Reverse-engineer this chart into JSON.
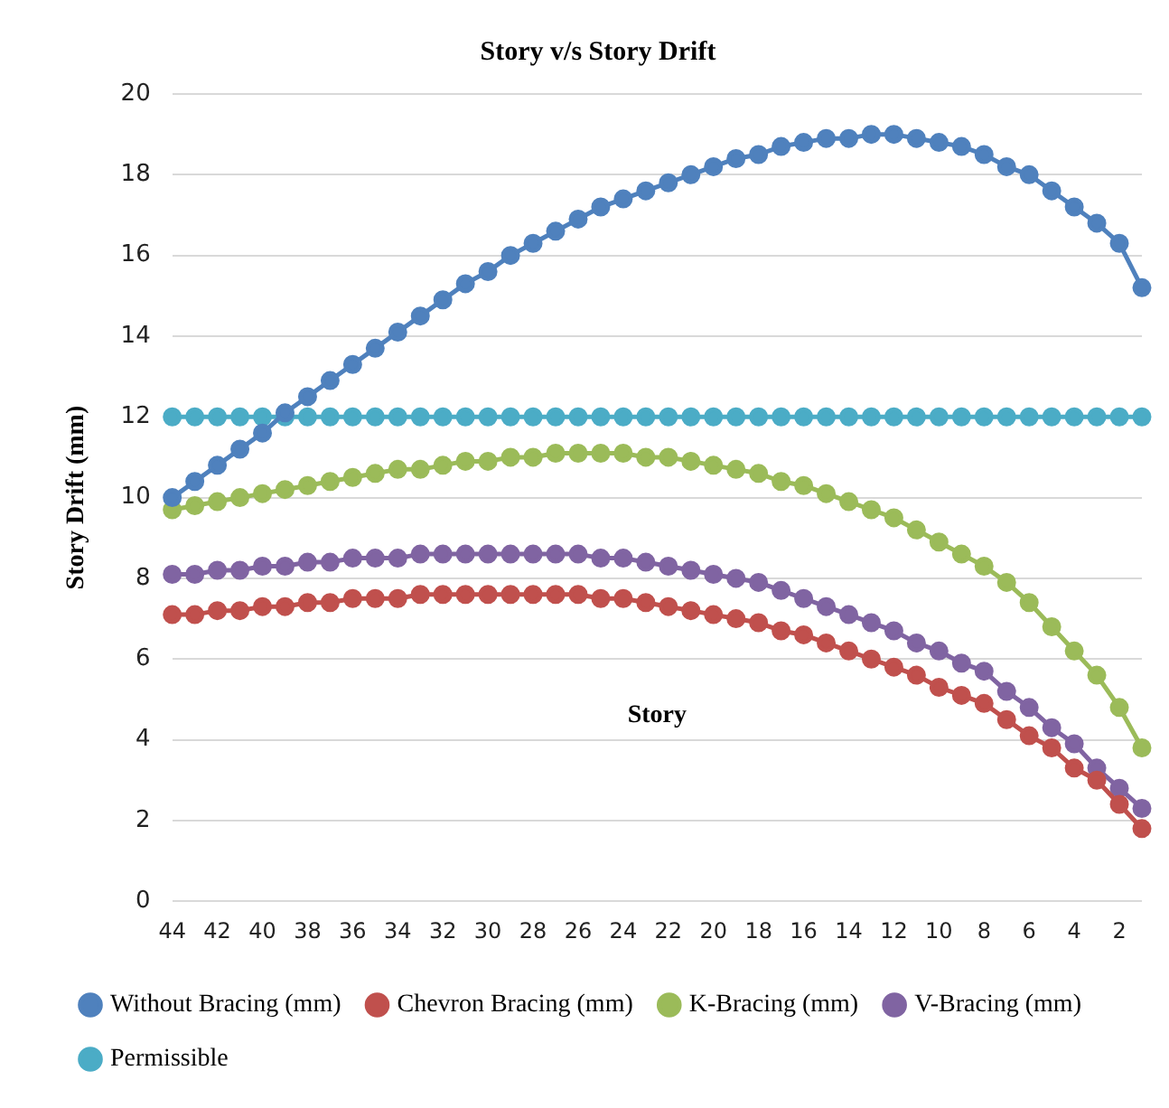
{
  "chart_data": {
    "type": "line",
    "title": "Story v/s Story Drift",
    "xlabel": "Story",
    "ylabel": "Story Drift (mm)",
    "categories": [
      "44",
      null,
      "42",
      null,
      "40",
      null,
      "38",
      null,
      "36",
      null,
      "34",
      null,
      "32",
      null,
      "30",
      null,
      "28",
      null,
      "26",
      null,
      "24",
      null,
      "22",
      null,
      "20",
      null,
      "18",
      null,
      "16",
      null,
      "14",
      null,
      "12",
      null,
      "10",
      null,
      "8",
      null,
      "6",
      null,
      "4",
      null,
      "2",
      null
    ],
    "series": [
      {
        "name": "Without Bracing (mm)",
        "color": "#4f81bd",
        "values": [
          10.0,
          10.4,
          10.8,
          11.2,
          11.6,
          12.1,
          12.5,
          12.9,
          13.3,
          13.7,
          14.1,
          14.5,
          14.9,
          15.3,
          15.6,
          16.0,
          16.3,
          16.6,
          16.9,
          17.2,
          17.4,
          17.6,
          17.8,
          18.0,
          18.2,
          18.4,
          18.5,
          18.7,
          18.8,
          18.9,
          18.9,
          19.0,
          19.0,
          18.9,
          18.8,
          18.7,
          18.5,
          18.2,
          18.0,
          17.6,
          17.2,
          16.8,
          16.3,
          15.2
        ]
      },
      {
        "name": "Chevron Bracing (mm)",
        "color": "#c0504d",
        "values": [
          7.1,
          7.1,
          7.2,
          7.2,
          7.3,
          7.3,
          7.4,
          7.4,
          7.5,
          7.5,
          7.5,
          7.6,
          7.6,
          7.6,
          7.6,
          7.6,
          7.6,
          7.6,
          7.6,
          7.5,
          7.5,
          7.4,
          7.3,
          7.2,
          7.1,
          7.0,
          6.9,
          6.7,
          6.6,
          6.4,
          6.2,
          6.0,
          5.8,
          5.6,
          5.3,
          5.1,
          4.9,
          4.5,
          4.1,
          3.8,
          3.3,
          3.0,
          2.4,
          1.8
        ]
      },
      {
        "name": "K-Bracing (mm)",
        "color": "#9bbb59",
        "values": [
          9.7,
          9.8,
          9.9,
          10.0,
          10.1,
          10.2,
          10.3,
          10.4,
          10.5,
          10.6,
          10.7,
          10.7,
          10.8,
          10.9,
          10.9,
          11.0,
          11.0,
          11.1,
          11.1,
          11.1,
          11.1,
          11.0,
          11.0,
          10.9,
          10.8,
          10.7,
          10.6,
          10.4,
          10.3,
          10.1,
          9.9,
          9.7,
          9.5,
          9.2,
          8.9,
          8.6,
          8.3,
          7.9,
          7.4,
          6.8,
          6.2,
          5.6,
          4.8,
          3.8
        ]
      },
      {
        "name": "V-Bracing (mm)",
        "color": "#8064a2",
        "values": [
          8.1,
          8.1,
          8.2,
          8.2,
          8.3,
          8.3,
          8.4,
          8.4,
          8.5,
          8.5,
          8.5,
          8.6,
          8.6,
          8.6,
          8.6,
          8.6,
          8.6,
          8.6,
          8.6,
          8.5,
          8.5,
          8.4,
          8.3,
          8.2,
          8.1,
          8.0,
          7.9,
          7.7,
          7.5,
          7.3,
          7.1,
          6.9,
          6.7,
          6.4,
          6.2,
          5.9,
          5.7,
          5.2,
          4.8,
          4.3,
          3.9,
          3.3,
          2.8,
          2.3
        ]
      },
      {
        "name": "Permissible",
        "color": "#4bacc6",
        "values": [
          12,
          12,
          12,
          12,
          12,
          12,
          12,
          12,
          12,
          12,
          12,
          12,
          12,
          12,
          12,
          12,
          12,
          12,
          12,
          12,
          12,
          12,
          12,
          12,
          12,
          12,
          12,
          12,
          12,
          12,
          12,
          12,
          12,
          12,
          12,
          12,
          12,
          12,
          12,
          12,
          12,
          12,
          12,
          12
        ]
      }
    ],
    "ylim": [
      0,
      20
    ],
    "yticks": [
      0,
      2,
      4,
      6,
      8,
      10,
      12,
      14,
      16,
      18,
      20
    ],
    "grid": "y",
    "legend": "bottom",
    "marker": "circle",
    "line_style": "solid"
  }
}
